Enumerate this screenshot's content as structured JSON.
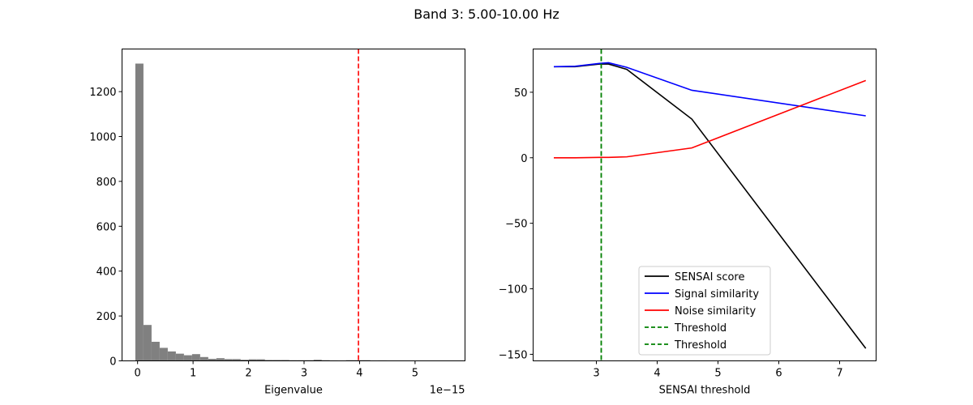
{
  "figure": {
    "title": "Band 3: 5.00-10.00 Hz"
  },
  "chart_data": [
    {
      "type": "bar",
      "subtype": "histogram",
      "title": "",
      "xlabel": "Eigenvalue",
      "ylabel": "",
      "x_offset_text": "1e−15",
      "xlim": [
        -0.28,
        5.9
      ],
      "ylim": [
        0,
        1390
      ],
      "xticks": [
        0,
        1,
        2,
        3,
        4,
        5
      ],
      "yticks": [
        0,
        200,
        400,
        600,
        800,
        1000,
        1200
      ],
      "bar_color": "#808080",
      "bin_width": 0.146,
      "bin_start": -0.04,
      "counts": [
        1325,
        160,
        85,
        58,
        42,
        32,
        25,
        30,
        17,
        9,
        12,
        8,
        8,
        5,
        7,
        7,
        4,
        4,
        4,
        3,
        3,
        3,
        5,
        3,
        2,
        0,
        3,
        3,
        3,
        1,
        2,
        0,
        0,
        0,
        0,
        0,
        0,
        0,
        0,
        0
      ],
      "vline": {
        "x": 3.98,
        "color": "#ff0000",
        "style": "dashed"
      },
      "grid": false
    },
    {
      "type": "line",
      "title": "",
      "xlabel": "SENSAI threshold",
      "ylabel": "",
      "xlim": [
        1.96,
        7.6
      ],
      "ylim": [
        -155,
        83
      ],
      "xticks": [
        3,
        4,
        5,
        6,
        7
      ],
      "yticks": [
        -150,
        -100,
        -50,
        0,
        50
      ],
      "x": [
        2.3,
        2.65,
        3.05,
        3.2,
        3.5,
        4.57,
        7.43
      ],
      "series": [
        {
          "name": "SENSAI score",
          "color": "#000000",
          "style": "solid",
          "values": [
            69.5,
            69.5,
            71.5,
            71.5,
            67.5,
            29.5,
            -145.5
          ]
        },
        {
          "name": "Signal similarity",
          "color": "#0000ff",
          "style": "solid",
          "values": [
            69.5,
            69.8,
            72,
            72.5,
            69,
            51.5,
            32
          ]
        },
        {
          "name": "Noise similarity",
          "color": "#ff0000",
          "style": "solid",
          "values": [
            0,
            0,
            0.3,
            0.3,
            0.7,
            7.5,
            59
          ]
        }
      ],
      "vlines": [
        {
          "name": "Threshold",
          "x": 3.08,
          "color": "#008000",
          "style": "dashed"
        },
        {
          "name": "Threshold",
          "x": 3.08,
          "color": "#008000",
          "style": "dashed"
        }
      ],
      "legend": {
        "position": "lower center",
        "entries": [
          "SENSAI score",
          "Signal similarity",
          "Noise similarity",
          "Threshold",
          "Threshold"
        ]
      },
      "grid": false
    }
  ]
}
